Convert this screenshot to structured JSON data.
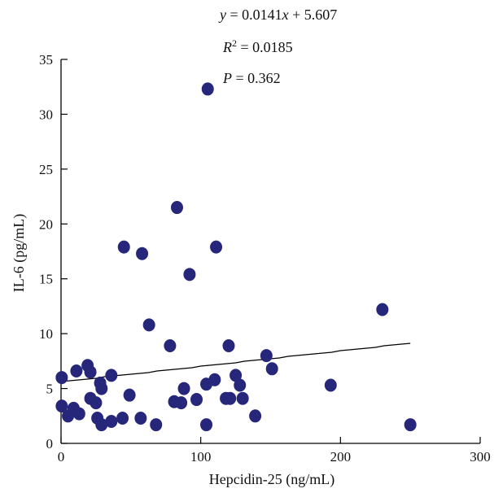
{
  "chart_data": {
    "type": "scatter",
    "xlabel": "Hepcidin-25 (ng/mL)",
    "ylabel": "IL-6 (pg/mL)",
    "xlim": [
      0,
      300
    ],
    "ylim": [
      0,
      35
    ],
    "xticks": [
      0,
      100,
      200,
      300
    ],
    "yticks": [
      0,
      5,
      10,
      15,
      20,
      25,
      30,
      35
    ],
    "grid": false,
    "annotations": {
      "equation_parts": [
        "y",
        " = 0.0141",
        "x",
        " + 5.607"
      ],
      "r2_parts": [
        "R",
        "2",
        " = 0.0185"
      ],
      "p_parts": [
        "P",
        " = 0.362"
      ]
    },
    "fit_line": {
      "slope": 0.0141,
      "intercept": 5.607,
      "x_range": [
        0,
        250
      ]
    },
    "points": [
      {
        "x": 0.5,
        "y": 6.0
      },
      {
        "x": 0.5,
        "y": 3.4
      },
      {
        "x": 5,
        "y": 2.5
      },
      {
        "x": 9,
        "y": 3.2
      },
      {
        "x": 11,
        "y": 6.6
      },
      {
        "x": 13,
        "y": 2.7
      },
      {
        "x": 19,
        "y": 7.1
      },
      {
        "x": 21,
        "y": 6.5
      },
      {
        "x": 21,
        "y": 4.1
      },
      {
        "x": 25,
        "y": 3.7
      },
      {
        "x": 26,
        "y": 2.3
      },
      {
        "x": 28,
        "y": 5.5
      },
      {
        "x": 29,
        "y": 1.7
      },
      {
        "x": 29,
        "y": 5.0
      },
      {
        "x": 36,
        "y": 6.2
      },
      {
        "x": 36,
        "y": 2.0
      },
      {
        "x": 44,
        "y": 2.3
      },
      {
        "x": 45,
        "y": 17.9
      },
      {
        "x": 49,
        "y": 4.4
      },
      {
        "x": 57,
        "y": 2.3
      },
      {
        "x": 58,
        "y": 17.3
      },
      {
        "x": 63,
        "y": 10.8
      },
      {
        "x": 68,
        "y": 1.7
      },
      {
        "x": 78,
        "y": 8.9
      },
      {
        "x": 81,
        "y": 3.8
      },
      {
        "x": 83,
        "y": 21.5
      },
      {
        "x": 86,
        "y": 3.7
      },
      {
        "x": 88,
        "y": 5.0
      },
      {
        "x": 92,
        "y": 15.4
      },
      {
        "x": 97,
        "y": 4.0
      },
      {
        "x": 104,
        "y": 1.7
      },
      {
        "x": 104,
        "y": 5.4
      },
      {
        "x": 105,
        "y": 32.3
      },
      {
        "x": 110,
        "y": 5.8
      },
      {
        "x": 111,
        "y": 17.9
      },
      {
        "x": 118,
        "y": 4.1
      },
      {
        "x": 120,
        "y": 8.9
      },
      {
        "x": 121,
        "y": 4.1
      },
      {
        "x": 125,
        "y": 6.2
      },
      {
        "x": 128,
        "y": 5.3
      },
      {
        "x": 130,
        "y": 4.1
      },
      {
        "x": 139,
        "y": 2.5
      },
      {
        "x": 147,
        "y": 8.0
      },
      {
        "x": 151,
        "y": 6.8
      },
      {
        "x": 193,
        "y": 5.3
      },
      {
        "x": 230,
        "y": 12.2
      },
      {
        "x": 250,
        "y": 1.7
      }
    ],
    "marker_color": "#26277a",
    "line_color": "#000000"
  }
}
